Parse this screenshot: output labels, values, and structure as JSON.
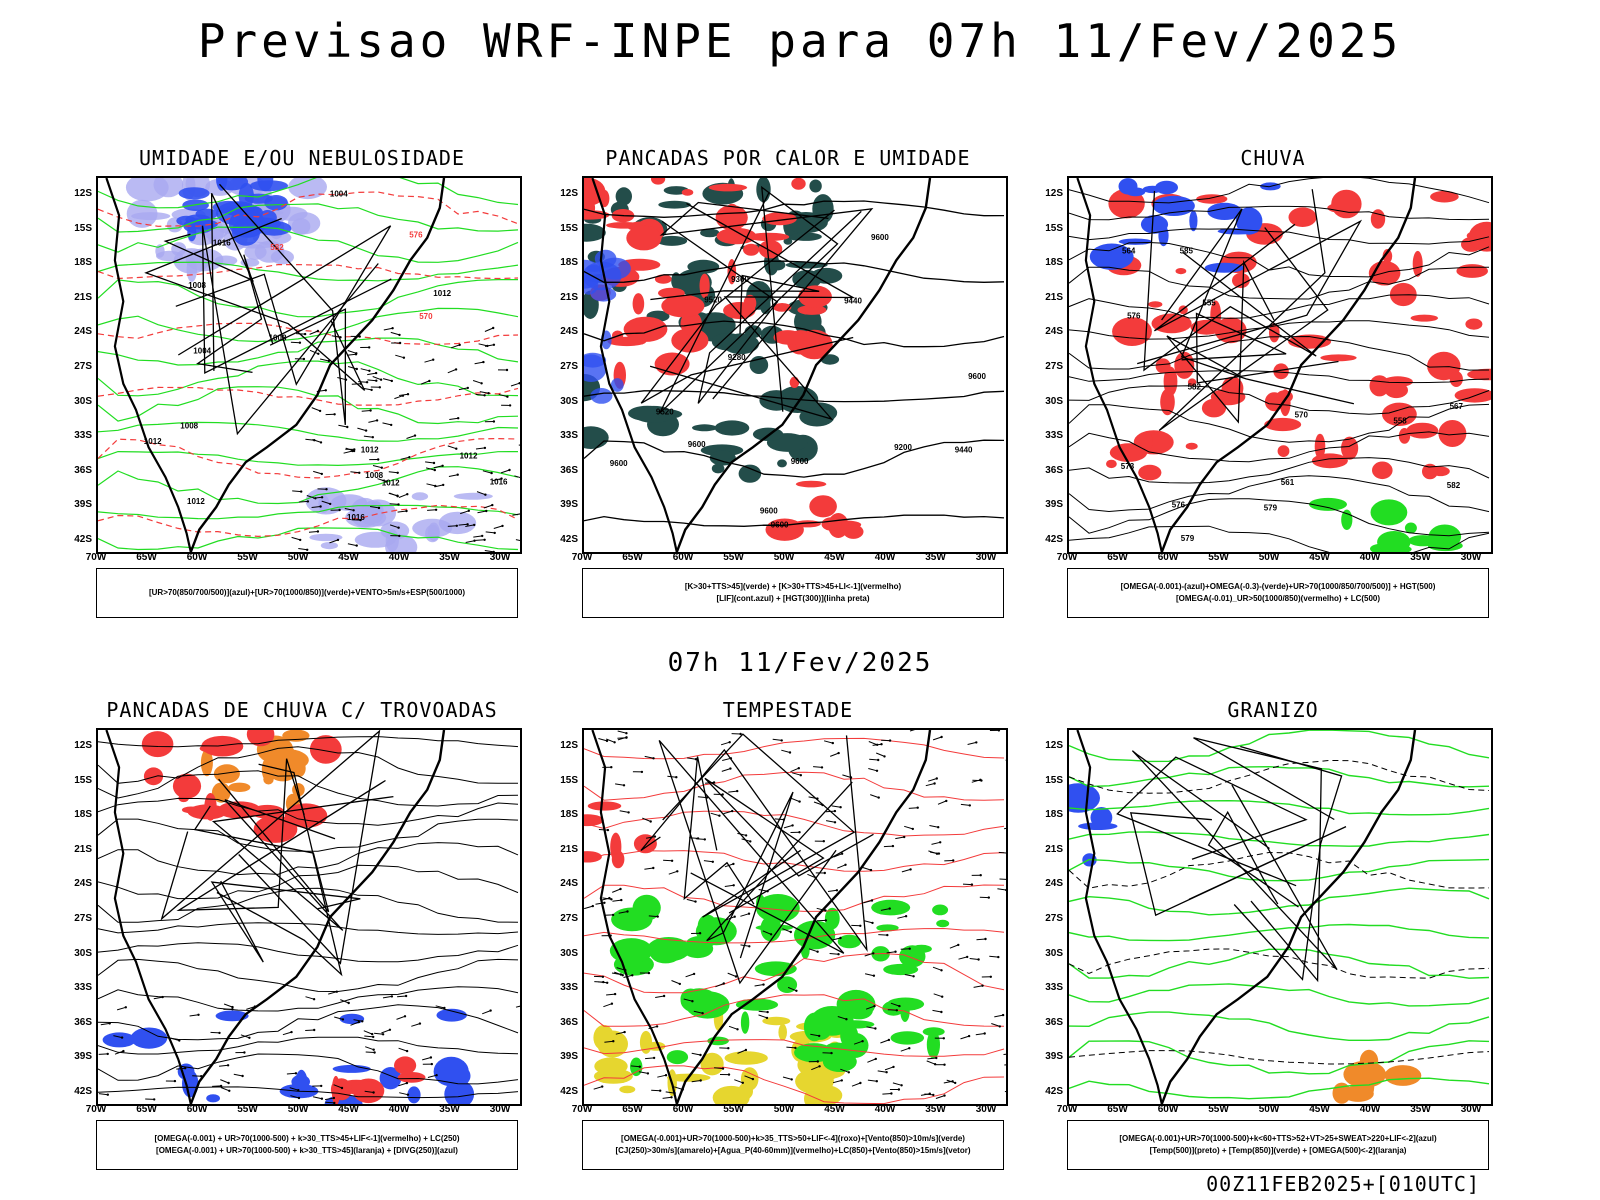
{
  "main_title": "Previsao WRF-INPE  para 07h 11/Fev/2025",
  "mid_title": "07h 11/Fev/2025",
  "footer": "00Z11FEB2025+[010UTC]",
  "axes": {
    "lat_labels": [
      "12S",
      "15S",
      "18S",
      "21S",
      "24S",
      "27S",
      "30S",
      "33S",
      "36S",
      "39S",
      "42S"
    ],
    "lon_labels": [
      "70W",
      "65W",
      "60W",
      "55W",
      "50W",
      "45W",
      "40W",
      "35W",
      "30W"
    ]
  },
  "colors": {
    "blue": "#3050f0",
    "lightblue": "#a9a9f0",
    "green": "#22dd22",
    "red": "#f33b3b",
    "darkteal": "#234d4a",
    "orange": "#f08a2a",
    "yellow": "#e6d62f",
    "purple": "#a020f0"
  },
  "panels": [
    {
      "title": "UMIDADE E/OU NEBULOSIDADE",
      "legend": [
        "[UR>70(850/700/500)](azul)+[UR>70(1000/850)](verde)+VENTO>5m/s+ESP(500/1000)"
      ],
      "contour_labels": [
        "1012",
        "1012",
        "1012",
        "1008",
        "1016",
        "1012",
        "1008",
        "1004",
        "1004",
        "1008",
        "1012",
        "1016",
        "570",
        "576",
        "582",
        "1008",
        "1012",
        "1016"
      ]
    },
    {
      "title": "PANCADAS POR CALOR E UMIDADE",
      "legend": [
        "[K>30+TTS>45](verde) + [K>30+TTS>45+LI<-1](vermelho)",
        "[LIF](cont.azul) + [HGT(300)](linha preta)"
      ],
      "contour_labels": [
        "9600",
        "9600",
        "9600",
        "9600",
        "9600",
        "9600",
        "9600",
        "9520",
        "9440",
        "9360",
        "9280",
        "9200",
        "9520",
        "9440"
      ]
    },
    {
      "title": "CHUVA",
      "legend": [
        "[OMEGA(-0.001)-(azul)+OMEGA(-0.3)-(verde)+UR>70(1000/850/700/500)] + HGT(500)",
        "[OMEGA(-0.01)_UR>50(1000/850)(vermelho) + LC(500)"
      ],
      "contour_labels": [
        "582",
        "585",
        "582",
        "579",
        "576",
        "573",
        "570",
        "567",
        "564",
        "561",
        "558",
        "555",
        "579",
        "576"
      ]
    },
    {
      "title": "PANCADAS DE CHUVA C/ TROVOADAS",
      "legend": [
        "[OMEGA(-0.001) + UR>70(1000-500) + k>30_TTS>45+LIF<-1](vermelho) + LC(250)",
        "[OMEGA(-0.001) + UR>70(1000-500) + k>30_TTS>45](laranja) + [DIVG(250)](azul)"
      ],
      "contour_labels": []
    },
    {
      "title": "TEMPESTADE",
      "legend": [
        "[OMEGA(-0.001)+UR>70(1000-500)+k>35_TTS>50+LIF<-4](roxo)+[Vento(850)>10m/s](verde)",
        "[CJ(250)>30m/s](amarelo)+[Agua_P(40-60mm)](vermelho)+LC(850)+[Vento(850)>15m/s](vetor)"
      ],
      "contour_labels": []
    },
    {
      "title": "GRANIZO",
      "legend": [
        "[OMEGA(-0.001)+UR>70(1000-500)+k<60+TTS>52+VT>25+SWEAT>220+LIF<-2](azul)",
        "[Temp(500)](preto) + [Temp(850)](verde) + [OMEGA(500)<-2](laranja)"
      ],
      "contour_labels": []
    }
  ]
}
